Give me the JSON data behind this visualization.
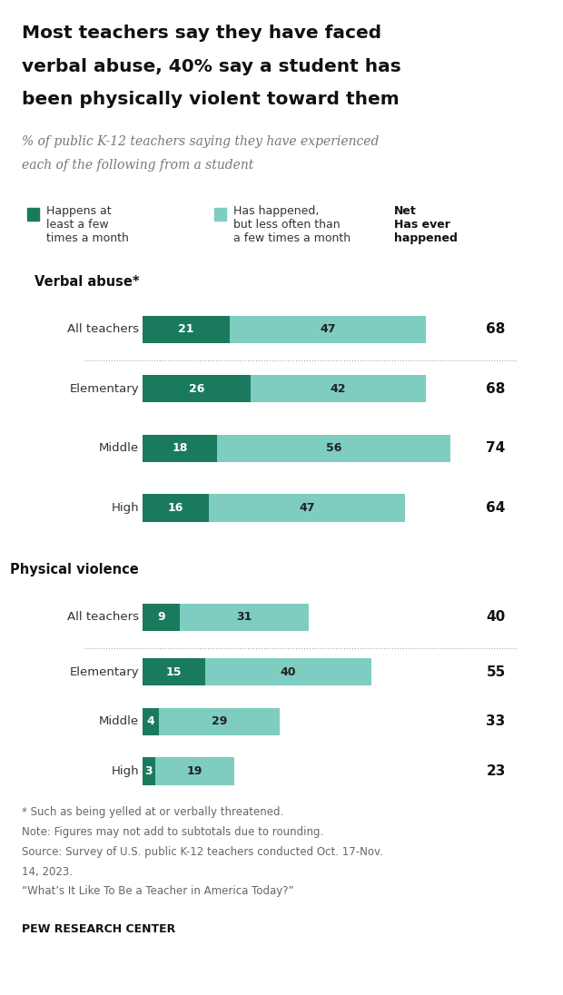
{
  "title_lines": [
    "Most teachers say they have faced",
    "verbal abuse, 40% say a student has",
    "been physically violent toward them"
  ],
  "subtitle_lines": [
    "% of public K-12 teachers saying they have experienced",
    "each of the following from a student"
  ],
  "legend_dark_text": "Happens at\nleast a few\ntimes a month",
  "legend_light_text": "Has happened,\nbut less often than\na few times a month",
  "legend_net_text": "Net\nHas ever\nhappened",
  "color_dark": "#1a7a5e",
  "color_light": "#7ecdc0",
  "section1_label": "Verbal abuse*",
  "section2_label": "Physical violence",
  "rows": [
    {
      "label": "All teachers",
      "dark": 21,
      "light": 47,
      "net": 68,
      "section": 1,
      "separator_after": true
    },
    {
      "label": "Elementary",
      "dark": 26,
      "light": 42,
      "net": 68,
      "section": 1,
      "separator_after": false
    },
    {
      "label": "Middle",
      "dark": 18,
      "light": 56,
      "net": 74,
      "section": 1,
      "separator_after": false
    },
    {
      "label": "High",
      "dark": 16,
      "light": 47,
      "net": 64,
      "section": 1,
      "separator_after": false
    },
    {
      "label": "All teachers",
      "dark": 9,
      "light": 31,
      "net": 40,
      "section": 2,
      "separator_after": true
    },
    {
      "label": "Elementary",
      "dark": 15,
      "light": 40,
      "net": 55,
      "section": 2,
      "separator_after": false
    },
    {
      "label": "Middle",
      "dark": 4,
      "light": 29,
      "net": 33,
      "section": 2,
      "separator_after": false
    },
    {
      "label": "High",
      "dark": 3,
      "light": 19,
      "net": 23,
      "section": 2,
      "separator_after": false
    }
  ],
  "footnote_lines": [
    "* Such as being yelled at or verbally threatened.",
    "Note: Figures may not add to subtotals due to rounding.",
    "Source: Survey of U.S. public K-12 teachers conducted Oct. 17-Nov.",
    "14, 2023.",
    "“What’s It Like To Be a Teacher in America Today?”"
  ],
  "source_label": "PEW RESEARCH CENTER",
  "xlim": 80,
  "bar_height": 0.55,
  "background_color": "#ffffff"
}
